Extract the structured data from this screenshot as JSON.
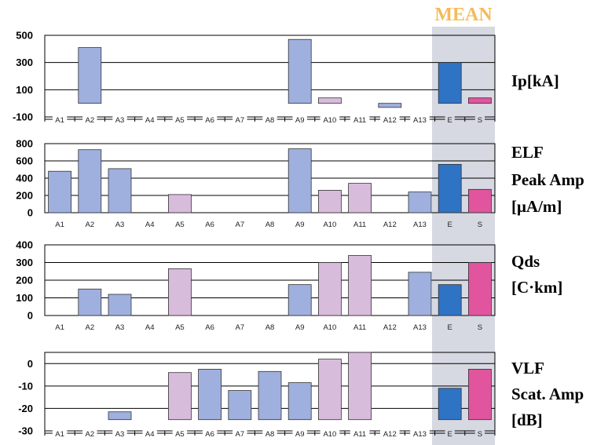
{
  "header": {
    "mean_label": "MEAN"
  },
  "colors": {
    "station": "#9fb0de",
    "station_alt": "#d8bcdc",
    "mean_e": "#2f73c4",
    "mean_s": "#e0559e",
    "mean_band": "#d6d9e1",
    "mean_text": "#f4bb5c"
  },
  "chart_data": [
    {
      "type": "bar",
      "label_lines": [
        "Ip[kA]"
      ],
      "categories": [
        "A1",
        "A2",
        "A3",
        "A4",
        "A5",
        "A6",
        "A7",
        "A8",
        "A9",
        "A10",
        "A11",
        "A12",
        "A13",
        "E",
        "S"
      ],
      "values": [
        null,
        410,
        null,
        null,
        null,
        null,
        null,
        null,
        470,
        40,
        null,
        -30,
        null,
        300,
        40
      ],
      "ylim": [
        -100,
        500
      ],
      "yticks": [
        -100,
        100,
        300,
        500
      ],
      "grid": true,
      "category_axis": "bottom"
    },
    {
      "type": "bar",
      "label_lines": [
        "ELF",
        "Peak Amp",
        "[μA/m]"
      ],
      "categories": [
        "A1",
        "A2",
        "A3",
        "A4",
        "A5",
        "A6",
        "A7",
        "A8",
        "A9",
        "A10",
        "A11",
        "A12",
        "A13",
        "E",
        "S"
      ],
      "values": [
        480,
        730,
        510,
        null,
        210,
        null,
        null,
        null,
        740,
        260,
        340,
        null,
        240,
        560,
        270
      ],
      "ylim": [
        0,
        800
      ],
      "yticks": [
        0,
        200,
        400,
        600,
        800
      ],
      "grid": true,
      "category_axis": "bottom"
    },
    {
      "type": "bar",
      "label_lines": [
        "Qds",
        "[C·km]"
      ],
      "categories": [
        "A1",
        "A2",
        "A3",
        "A4",
        "A5",
        "A6",
        "A7",
        "A8",
        "A9",
        "A10",
        "A11",
        "A12",
        "A13",
        "E",
        "S"
      ],
      "values": [
        null,
        150,
        120,
        null,
        265,
        null,
        null,
        null,
        175,
        300,
        340,
        null,
        245,
        175,
        300
      ],
      "ylim": [
        0,
        400
      ],
      "yticks": [
        0,
        100,
        200,
        300,
        400
      ],
      "grid": true,
      "category_axis": "bottom"
    },
    {
      "type": "bar",
      "label_lines": [
        "VLF",
        "Scat. Amp",
        "[dB]"
      ],
      "categories": [
        "A1",
        "A2",
        "A3",
        "A4",
        "A5",
        "A6",
        "A7",
        "A8",
        "A9",
        "A10",
        "A11",
        "A12",
        "A13",
        "E",
        "S"
      ],
      "values": [
        null,
        null,
        -21.5,
        null,
        -4,
        -2.5,
        -12,
        -3.5,
        -8.5,
        2,
        5,
        null,
        null,
        -11,
        -2.5
      ],
      "ylim": [
        -30,
        5
      ],
      "yticks": [
        -30,
        -20,
        -10,
        0
      ],
      "grid": true,
      "category_axis": "bottom"
    }
  ]
}
